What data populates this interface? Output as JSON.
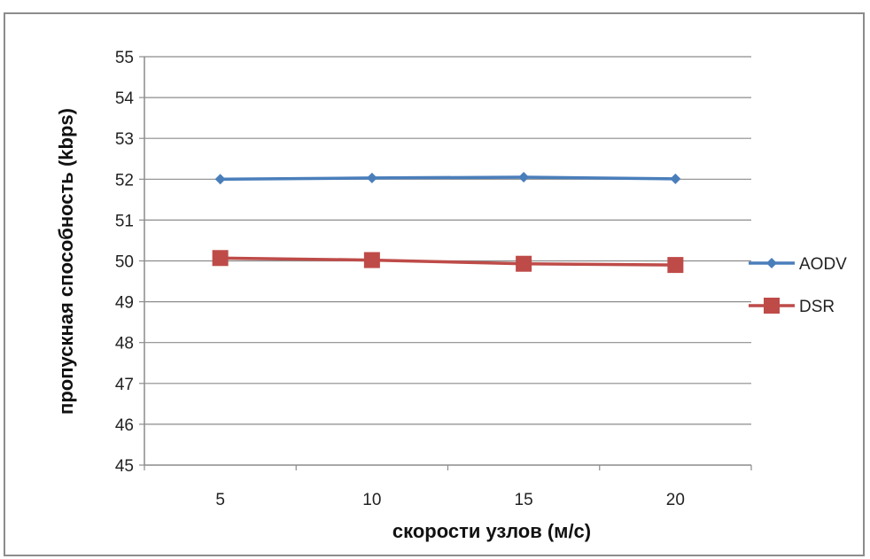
{
  "chart_data": {
    "type": "line",
    "categories": [
      "5",
      "10",
      "15",
      "20"
    ],
    "series": [
      {
        "name": "AODV",
        "values": [
          52.0,
          52.03,
          52.05,
          52.01
        ],
        "color": "#4a7ebb",
        "marker": "diamond"
      },
      {
        "name": "DSR",
        "values": [
          50.07,
          50.02,
          49.93,
          49.9
        ],
        "color": "#be4b48",
        "marker": "square"
      }
    ],
    "title": "",
    "xlabel": "скорости узлов (м/с)",
    "ylabel": "пропускная способность (kbps)",
    "ylim": [
      45,
      55
    ],
    "yticks": [
      "45",
      "46",
      "47",
      "48",
      "49",
      "50",
      "51",
      "52",
      "53",
      "54",
      "55"
    ],
    "grid": true,
    "legend_position": "right"
  }
}
